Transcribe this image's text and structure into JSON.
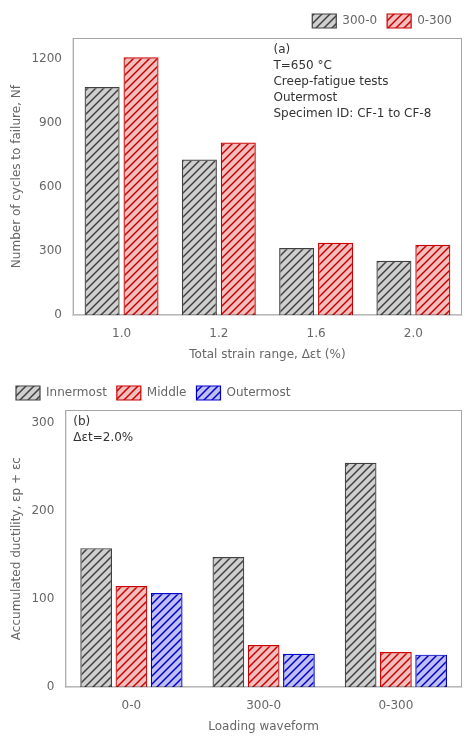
{
  "chart_data": [
    {
      "type": "bar",
      "categories": [
        "1.0",
        "1.2",
        "1.6",
        "2.0"
      ],
      "series": [
        {
          "name": "300-0",
          "color": "#404040",
          "values": [
            1070,
            730,
            315,
            255
          ]
        },
        {
          "name": "0-300",
          "color": "#cc0000",
          "values": [
            1210,
            810,
            340,
            330
          ]
        }
      ],
      "xlabel": "Total strain range, Δεt (%)",
      "ylabel": "Number of cycles to failure, Nf",
      "annotations": [
        "(a)",
        "T=650 °C",
        "Creep-fatigue tests\nOutermost\nSpecimen ID: CF-1 to CF-8"
      ],
      "ylim": [
        0,
        1300
      ],
      "yticks": [
        0,
        300,
        600,
        900,
        1200
      ],
      "grid": false,
      "legend": "upper right"
    },
    {
      "type": "bar",
      "categories": [
        "0-0",
        "300-0",
        "0-300"
      ],
      "series": [
        {
          "name": "Innermost",
          "color": "#404040",
          "values": [
            158,
            148,
            255
          ]
        },
        {
          "name": "Middle",
          "color": "#cc0000",
          "values": [
            115,
            48,
            40
          ]
        },
        {
          "name": "Outermost",
          "color": "#0000cc",
          "values": [
            107,
            38,
            37
          ]
        }
      ],
      "xlabel": "Loading waveform",
      "ylabel": "Accumulated ductility, εp + εc",
      "annotations": [
        "(b)",
        "Δεt=2.0%"
      ],
      "ylim": [
        0,
        315
      ],
      "yticks": [
        0,
        100,
        200,
        300
      ],
      "grid": false,
      "legend": "upper left"
    }
  ]
}
